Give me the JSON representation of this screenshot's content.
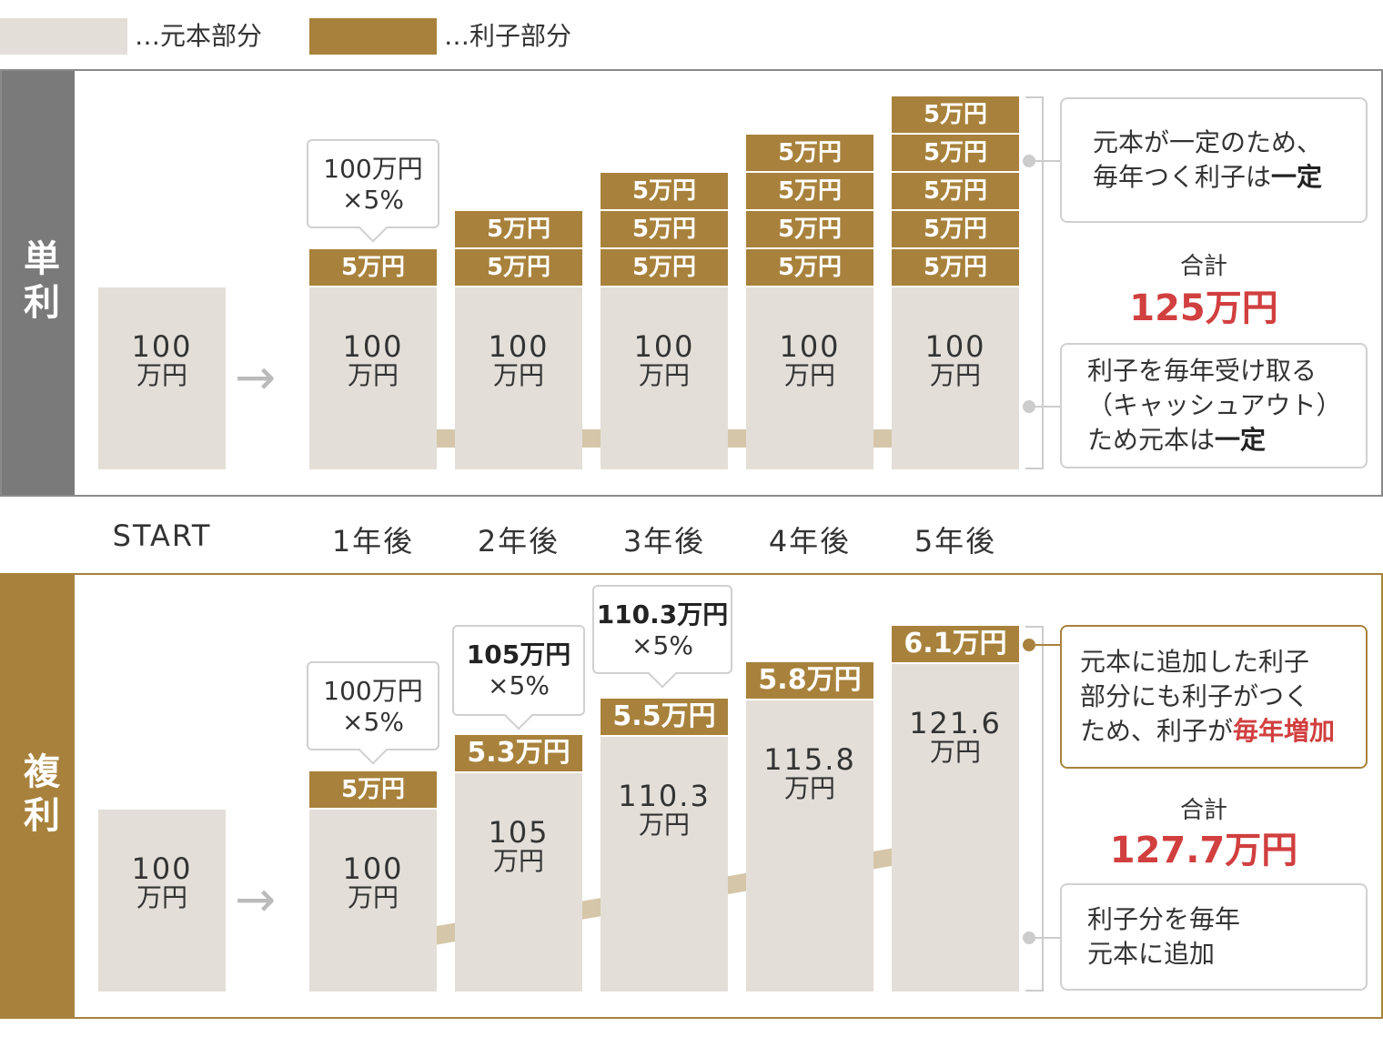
{
  "legend": {
    "principal_label": "…元本部分",
    "interest_label": "…利子部分"
  },
  "colors": {
    "principal": "#e3dfd8",
    "interest": "#a8823c",
    "simple_side": "#7a7a7a",
    "compound_side": "#a8823c",
    "total_red": "#d13f3f",
    "trend_arrow": "#cbb893"
  },
  "years": [
    "START",
    "1年後",
    "2年後",
    "3年後",
    "4年後",
    "5年後"
  ],
  "simple": {
    "title": "単利",
    "columns": [
      {
        "principal": "100",
        "unit": "万円",
        "interest": []
      },
      {
        "principal": "100",
        "unit": "万円",
        "interest": [
          "5万円"
        ]
      },
      {
        "principal": "100",
        "unit": "万円",
        "interest": [
          "5万円",
          "5万円"
        ]
      },
      {
        "principal": "100",
        "unit": "万円",
        "interest": [
          "5万円",
          "5万円",
          "5万円"
        ]
      },
      {
        "principal": "100",
        "unit": "万円",
        "interest": [
          "5万円",
          "5万円",
          "5万円",
          "5万円"
        ]
      },
      {
        "principal": "100",
        "unit": "万円",
        "interest": [
          "5万円",
          "5万円",
          "5万円",
          "5万円",
          "5万円"
        ]
      }
    ],
    "callout": {
      "base": "100万円",
      "rate": "×5%"
    },
    "note_top": {
      "text": "元本が一定のため、\n毎年つく利子は",
      "emph": "一定"
    },
    "total_label": "合計",
    "total": "125万円",
    "note_bottom": {
      "text": "利子を毎年受け取る\n（キャッシュアウト）\nため元本は",
      "emph": "一定"
    }
  },
  "compound": {
    "title": "複利",
    "columns": [
      {
        "principal": "100",
        "unit": "万円",
        "interest": ""
      },
      {
        "principal": "100",
        "unit": "万円",
        "interest": "5万円"
      },
      {
        "principal": "105",
        "unit": "万円",
        "interest": "5.3万円"
      },
      {
        "principal": "110.3",
        "unit": "万円",
        "interest": "5.5万円"
      },
      {
        "principal": "115.8",
        "unit": "万円",
        "interest": "5.8万円"
      },
      {
        "principal": "121.6",
        "unit": "万円",
        "interest": "6.1万円"
      }
    ],
    "callouts": [
      {
        "base": "100万円",
        "rate": "×5%"
      },
      {
        "base": "105万円",
        "rate": "×5%"
      },
      {
        "base": "110.3万円",
        "rate": "×5%"
      }
    ],
    "note_top": {
      "text": "元本に追加した利子\n部分にも利子がつく\nため、利子が",
      "emph": "毎年増加"
    },
    "total_label": "合計",
    "total": "127.7万円",
    "note_bottom": {
      "text": "利子分を毎年\n元本に追加"
    }
  }
}
